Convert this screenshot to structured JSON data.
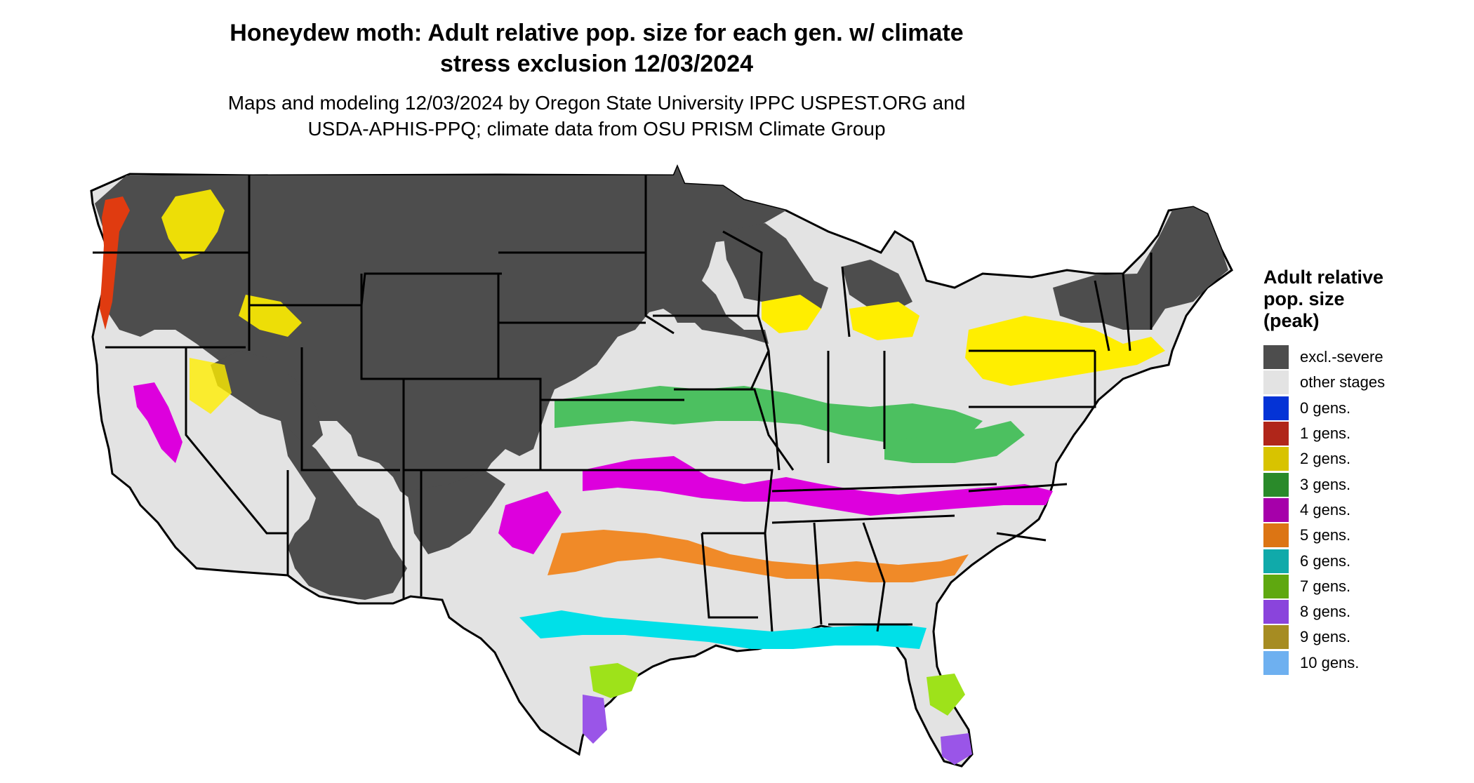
{
  "header": {
    "title_line1": "Honeydew moth: Adult relative pop. size for each gen. w/ climate",
    "title_line2": "stress exclusion 12/03/2024",
    "subtitle_line1": "Maps and modeling 12/03/2024 by Oregon State University IPPC USPEST.ORG and",
    "subtitle_line2": "USDA-APHIS-PPQ; climate data from OSU PRISM Climate Group"
  },
  "legend": {
    "title_line1": "Adult relative",
    "title_line2": "pop. size",
    "title_line3": "(peak)",
    "items": [
      {
        "label": "excl.-severe",
        "color": "#4d4d4d"
      },
      {
        "label": "other stages",
        "color": "#e3e3e3"
      },
      {
        "label": "0 gens.",
        "color": "#0433d6"
      },
      {
        "label": "1 gens.",
        "color": "#b0261a"
      },
      {
        "label": "2 gens.",
        "color": "#d8c300"
      },
      {
        "label": "3 gens.",
        "color": "#2a8a2a"
      },
      {
        "label": "4 gens.",
        "color": "#a600aa"
      },
      {
        "label": "5 gens.",
        "color": "#dc7514"
      },
      {
        "label": "6 gens.",
        "color": "#10aaaa"
      },
      {
        "label": "7 gens.",
        "color": "#5fa810"
      },
      {
        "label": "8 gens.",
        "color": "#8a44dc"
      },
      {
        "label": "9 gens.",
        "color": "#a68c22"
      },
      {
        "label": "10 gens.",
        "color": "#6eb0f0"
      }
    ]
  },
  "colors": {
    "excluded": "#4d4d4d",
    "other": "#e3e3e3",
    "gen1_fill": "#e03b10",
    "gen2_fill": "#ffee00",
    "gen3_fill": "#4cc060",
    "gen4_fill": "#dd00dd",
    "gen5_fill": "#f08a28",
    "gen6_fill": "#00e0e8",
    "gen7_fill": "#9ee21a",
    "gen8_fill": "#9a55e8",
    "border": "#000000"
  }
}
